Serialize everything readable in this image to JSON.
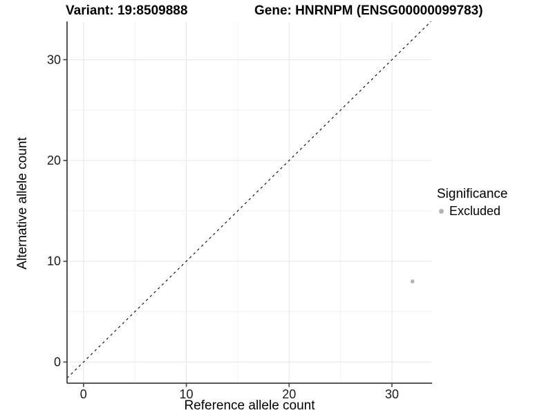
{
  "titles": {
    "variant": "Variant: 19:8509888",
    "gene": "Gene: HNRNPM (ENSG00000099783)"
  },
  "chart_data": {
    "type": "scatter",
    "title_left": "Variant: 19:8509888",
    "title_right": "Gene: HNRNPM (ENSG00000099783)",
    "xlabel": "Reference allele count",
    "ylabel": "Alternative allele count",
    "xlim": [
      -1.6,
      33.9
    ],
    "ylim": [
      -2.1,
      33.8
    ],
    "xticks": [
      0,
      10,
      20,
      30
    ],
    "yticks": [
      0,
      10,
      20,
      30
    ],
    "minor_xticks": [
      5,
      15,
      25
    ],
    "minor_yticks": [
      5,
      15,
      25
    ],
    "grid": true,
    "background": "#ffffff",
    "reference_line": {
      "type": "identity",
      "equation": "y = x",
      "style": "dashed",
      "color": "#000000"
    },
    "series": [
      {
        "name": "Excluded",
        "color": "#b4b4b4",
        "points": [
          {
            "x": 32,
            "y": 8
          }
        ]
      }
    ],
    "legend": {
      "title": "Significance",
      "position": "right",
      "items": [
        {
          "label": "Excluded",
          "color": "#b4b4b4",
          "marker": "circle"
        }
      ]
    }
  },
  "legend": {
    "title": "Significance",
    "item_excluded": "Excluded"
  },
  "colors": {
    "accent_point": "#b4b4b4",
    "axis_line": "#404040",
    "tick_label": "#1a1a1a",
    "grid_major": "#e6e6e6",
    "grid_minor": "#f2f2f2",
    "reference_line": "#000000"
  }
}
